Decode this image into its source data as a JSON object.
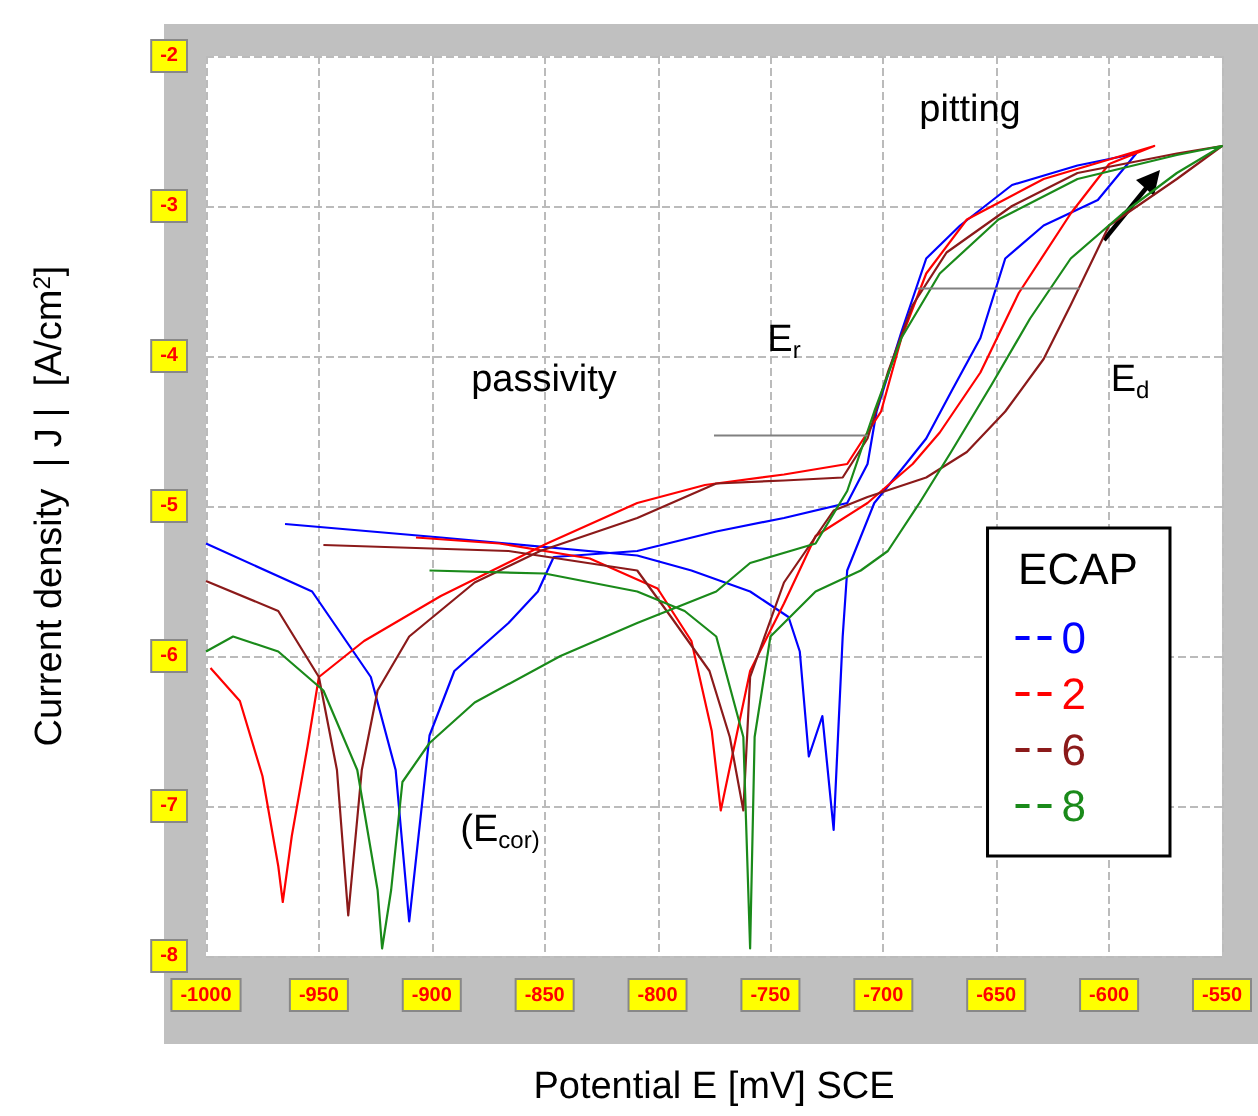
{
  "chart_data": {
    "type": "line",
    "xlabel": "Potential E [mV] SCE",
    "ylabel": "Current density  | J |  [A/cm$^{2}$]",
    "legend_title": "ECAP",
    "xlim": [
      -1000,
      -550
    ],
    "xticks": [
      -1000,
      -950,
      -900,
      -850,
      -800,
      -750,
      -700,
      -650,
      -600,
      -550
    ],
    "ylim": [
      -8,
      -2
    ],
    "yticks": [
      -8,
      -7,
      -6,
      -5,
      -4,
      -3,
      -2
    ],
    "grid": true,
    "legend": "bottom right",
    "marker": "none",
    "line_style": "solid",
    "annotations": [
      "passivity",
      "pitting",
      "E$_{r}$",
      "E$_{d}$",
      "(E$_{cor)}$"
    ],
    "series": [
      {
        "name": "0",
        "color": "#0000ff",
        "x": [
          -1000,
          -953,
          -927,
          -916,
          -910,
          -901,
          -890,
          -866,
          -853,
          -846,
          -809,
          -774,
          -744,
          -716,
          -707,
          -703,
          -692,
          -681,
          -666,
          -643,
          -614,
          -588,
          -605,
          -629,
          -646,
          -657,
          -670,
          -681,
          -690,
          -704,
          -716,
          -718,
          -722,
          -727,
          -733,
          -737,
          -742,
          -759,
          -785,
          -809,
          -896,
          -965
        ],
        "values": [
          -5.25,
          -5.57,
          -6.14,
          -6.76,
          -7.77,
          -6.53,
          -6.1,
          -5.78,
          -5.57,
          -5.34,
          -5.3,
          -5.17,
          -5.08,
          -4.98,
          -4.72,
          -4.37,
          -3.84,
          -3.35,
          -3.13,
          -2.86,
          -2.73,
          -2.65,
          -2.96,
          -3.13,
          -3.35,
          -3.88,
          -4.24,
          -4.55,
          -4.72,
          -4.98,
          -5.43,
          -5.87,
          -7.16,
          -6.4,
          -6.67,
          -5.97,
          -5.74,
          -5.57,
          -5.43,
          -5.33,
          -5.21,
          -5.12
        ]
      },
      {
        "name": "2",
        "color": "#ff0000",
        "x": [
          -998,
          -985,
          -975,
          -968,
          -966,
          -962,
          -955,
          -950,
          -930,
          -896,
          -849,
          -809,
          -779,
          -744,
          -716,
          -701,
          -692,
          -681,
          -663,
          -629,
          -600,
          -580,
          -600,
          -617,
          -640,
          -657,
          -675,
          -687,
          -707,
          -730,
          -744,
          -759,
          -766,
          -772,
          -776,
          -785,
          -800,
          -830,
          -870,
          -907
        ],
        "values": [
          -6.08,
          -6.3,
          -6.8,
          -7.4,
          -7.64,
          -7.2,
          -6.6,
          -6.14,
          -5.9,
          -5.6,
          -5.25,
          -4.98,
          -4.86,
          -4.79,
          -4.72,
          -4.37,
          -3.88,
          -3.45,
          -3.09,
          -2.82,
          -2.69,
          -2.6,
          -2.72,
          -3.05,
          -3.58,
          -4.11,
          -4.51,
          -4.72,
          -4.98,
          -5.2,
          -5.65,
          -6.1,
          -6.6,
          -7.03,
          -6.5,
          -5.9,
          -5.55,
          -5.35,
          -5.25,
          -5.21
        ]
      },
      {
        "name": "6",
        "color": "#8b1a1a",
        "x": [
          -1000,
          -968,
          -950,
          -942,
          -937,
          -931,
          -924,
          -910,
          -881,
          -852,
          -809,
          -774,
          -744,
          -718,
          -707,
          -698,
          -687,
          -672,
          -643,
          -614,
          -570,
          -550,
          -570,
          -600,
          -617,
          -629,
          -646,
          -663,
          -681,
          -707,
          -722,
          -744,
          -759,
          -762,
          -768,
          -777,
          -794,
          -809,
          -866,
          -948
        ],
        "values": [
          -5.5,
          -5.7,
          -6.14,
          -6.76,
          -7.73,
          -6.76,
          -6.23,
          -5.87,
          -5.51,
          -5.3,
          -5.08,
          -4.85,
          -4.83,
          -4.81,
          -4.55,
          -4.11,
          -3.66,
          -3.31,
          -3.0,
          -2.78,
          -2.65,
          -2.6,
          -2.82,
          -3.13,
          -3.66,
          -4.02,
          -4.37,
          -4.64,
          -4.81,
          -4.94,
          -5.03,
          -5.51,
          -6.14,
          -7.03,
          -6.54,
          -6.1,
          -5.74,
          -5.43,
          -5.3,
          -5.26
        ]
      },
      {
        "name": "8",
        "color": "#1a8a1a",
        "x": [
          -1000,
          -988,
          -968,
          -948,
          -933,
          -924,
          -922,
          -918,
          -913,
          -901,
          -881,
          -843,
          -809,
          -774,
          -759,
          -730,
          -716,
          -704,
          -692,
          -675,
          -649,
          -614,
          -570,
          -550,
          -570,
          -594,
          -617,
          -635,
          -652,
          -670,
          -684,
          -698,
          -710,
          -730,
          -750,
          -757,
          -759,
          -762,
          -774,
          -788,
          -809,
          -850,
          -901
        ],
        "values": [
          -5.97,
          -5.87,
          -5.97,
          -6.23,
          -6.76,
          -7.56,
          -7.95,
          -7.56,
          -6.84,
          -6.58,
          -6.31,
          -6.0,
          -5.78,
          -5.57,
          -5.38,
          -5.25,
          -4.9,
          -4.37,
          -3.88,
          -3.45,
          -3.09,
          -2.82,
          -2.66,
          -2.6,
          -2.78,
          -3.05,
          -3.35,
          -3.75,
          -4.19,
          -4.64,
          -4.98,
          -5.3,
          -5.43,
          -5.57,
          -5.87,
          -6.54,
          -7.95,
          -6.54,
          -5.87,
          -5.7,
          -5.57,
          -5.45,
          -5.43
        ]
      },
      {
        "color": "#808080",
        "x": [
          -775,
          -707
        ],
        "values": [
          -4.53,
          -4.53
        ]
      },
      {
        "color": "#808080",
        "x": [
          -685,
          -613
        ],
        "values": [
          -3.55,
          -3.55
        ]
      }
    ]
  }
}
